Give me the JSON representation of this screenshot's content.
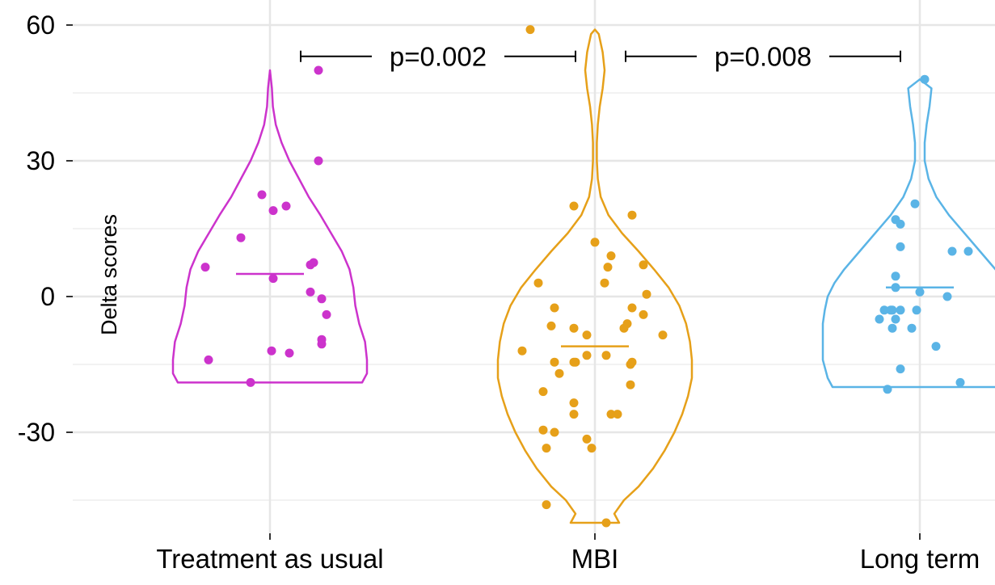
{
  "colors": {
    "grid_major": "#e6e6e6",
    "grid_minor": "#f2f2f2",
    "treatment": "#cc33cc",
    "mbi": "#e6a019",
    "longterm": "#5ab4e6",
    "tick": "#333333"
  },
  "chart_data": {
    "type": "violin",
    "title": "",
    "xlabel": "",
    "ylabel": "Delta scores",
    "ylim": [
      -52,
      62
    ],
    "yticks": [
      60,
      30,
      0,
      -30
    ],
    "ytick_labels": [
      "60",
      "30",
      "0",
      "-30"
    ],
    "grid": true,
    "categories": [
      "Treatment as usual",
      "MBI",
      "Long term"
    ],
    "groups": [
      {
        "category": "Treatment as usual",
        "color_key": "treatment",
        "median": 5,
        "range": [
          -19,
          50
        ],
        "violin_profile": [
          [
            -19,
            0.95
          ],
          [
            -17,
            1.0
          ],
          [
            -14,
            1.0
          ],
          [
            -10,
            0.98
          ],
          [
            -6,
            0.92
          ],
          [
            -2,
            0.88
          ],
          [
            2,
            0.86
          ],
          [
            6,
            0.82
          ],
          [
            10,
            0.74
          ],
          [
            14,
            0.63
          ],
          [
            18,
            0.52
          ],
          [
            22,
            0.4
          ],
          [
            26,
            0.3
          ],
          [
            30,
            0.2
          ],
          [
            34,
            0.12
          ],
          [
            38,
            0.06
          ],
          [
            42,
            0.03
          ],
          [
            46,
            0.02
          ],
          [
            50,
            0.0
          ]
        ],
        "points": [
          [
            0.3,
            50
          ],
          [
            0.3,
            30
          ],
          [
            -0.05,
            22.5
          ],
          [
            0.02,
            19
          ],
          [
            0.1,
            20
          ],
          [
            -0.18,
            13
          ],
          [
            -0.4,
            6.5
          ],
          [
            0.25,
            7
          ],
          [
            0.27,
            7.5
          ],
          [
            0.02,
            4
          ],
          [
            0.25,
            1
          ],
          [
            0.32,
            -0.5
          ],
          [
            0.35,
            -4
          ],
          [
            0.32,
            -9.5
          ],
          [
            0.32,
            -10.5
          ],
          [
            0.01,
            -12
          ],
          [
            0.12,
            -12.5
          ],
          [
            -0.38,
            -14
          ],
          [
            -0.12,
            -19
          ]
        ]
      },
      {
        "category": "MBI",
        "color_key": "mbi",
        "median": -11,
        "range": [
          -50,
          59
        ],
        "violin_profile": [
          [
            -50,
            0.25
          ],
          [
            -48,
            0.2
          ],
          [
            -45,
            0.3
          ],
          [
            -42,
            0.45
          ],
          [
            -38,
            0.6
          ],
          [
            -34,
            0.72
          ],
          [
            -30,
            0.82
          ],
          [
            -26,
            0.9
          ],
          [
            -22,
            0.96
          ],
          [
            -18,
            1.0
          ],
          [
            -14,
            1.0
          ],
          [
            -10,
            0.98
          ],
          [
            -6,
            0.94
          ],
          [
            -2,
            0.87
          ],
          [
            2,
            0.76
          ],
          [
            6,
            0.61
          ],
          [
            10,
            0.45
          ],
          [
            14,
            0.28
          ],
          [
            18,
            0.14
          ],
          [
            22,
            0.06
          ],
          [
            26,
            0.03
          ],
          [
            30,
            0.02
          ],
          [
            34,
            0.02
          ],
          [
            38,
            0.03
          ],
          [
            42,
            0.05
          ],
          [
            46,
            0.08
          ],
          [
            50,
            0.1
          ],
          [
            54,
            0.08
          ],
          [
            58,
            0.04
          ],
          [
            59,
            0.0
          ]
        ],
        "points": [
          [
            -0.4,
            59
          ],
          [
            -0.13,
            20
          ],
          [
            0.23,
            18
          ],
          [
            0.0,
            12
          ],
          [
            0.1,
            9
          ],
          [
            0.08,
            6.5
          ],
          [
            0.3,
            7
          ],
          [
            -0.35,
            3
          ],
          [
            0.06,
            3
          ],
          [
            0.32,
            0.5
          ],
          [
            -0.25,
            -2.5
          ],
          [
            0.23,
            -2.5
          ],
          [
            0.3,
            -4
          ],
          [
            0.2,
            -6
          ],
          [
            0.18,
            -7
          ],
          [
            -0.27,
            -6.5
          ],
          [
            -0.13,
            -7
          ],
          [
            -0.05,
            -8.5
          ],
          [
            0.42,
            -8.5
          ],
          [
            -0.45,
            -12
          ],
          [
            -0.25,
            -14.5
          ],
          [
            -0.05,
            -13
          ],
          [
            -0.12,
            -14.5
          ],
          [
            -0.13,
            -14.5
          ],
          [
            0.07,
            -13
          ],
          [
            0.22,
            -15
          ],
          [
            0.23,
            -14.5
          ],
          [
            -0.22,
            -17
          ],
          [
            0.22,
            -19.5
          ],
          [
            -0.32,
            -21
          ],
          [
            -0.13,
            -23.5
          ],
          [
            -0.13,
            -26
          ],
          [
            0.1,
            -26
          ],
          [
            0.14,
            -26
          ],
          [
            -0.32,
            -29.5
          ],
          [
            -0.25,
            -30
          ],
          [
            -0.3,
            -33.5
          ],
          [
            -0.05,
            -31.5
          ],
          [
            -0.02,
            -33.5
          ],
          [
            -0.3,
            -46
          ],
          [
            0.07,
            -50
          ]
        ]
      },
      {
        "category": "Long term",
        "color_key": "longterm",
        "median": 2,
        "range": [
          -20,
          48
        ],
        "violin_profile": [
          [
            -20,
            0.9
          ],
          [
            -18,
            0.95
          ],
          [
            -14,
            1.0
          ],
          [
            -10,
            1.0
          ],
          [
            -6,
            1.0
          ],
          [
            -3,
            0.98
          ],
          [
            0,
            0.95
          ],
          [
            3,
            0.88
          ],
          [
            6,
            0.78
          ],
          [
            10,
            0.62
          ],
          [
            14,
            0.46
          ],
          [
            18,
            0.3
          ],
          [
            22,
            0.17
          ],
          [
            26,
            0.09
          ],
          [
            30,
            0.05
          ],
          [
            34,
            0.05
          ],
          [
            38,
            0.07
          ],
          [
            42,
            0.1
          ],
          [
            46,
            0.12
          ],
          [
            48,
            0.0
          ]
        ],
        "points": [
          [
            0.03,
            48
          ],
          [
            -0.03,
            20.5
          ],
          [
            -0.15,
            17
          ],
          [
            -0.12,
            16
          ],
          [
            -0.12,
            11
          ],
          [
            0.2,
            10
          ],
          [
            0.3,
            10
          ],
          [
            -0.15,
            4.5
          ],
          [
            -0.15,
            2
          ],
          [
            0,
            1
          ],
          [
            0.17,
            0
          ],
          [
            -0.18,
            -3
          ],
          [
            -0.17,
            -3
          ],
          [
            -0.22,
            -3
          ],
          [
            -0.12,
            -3
          ],
          [
            -0.02,
            -3
          ],
          [
            -0.25,
            -5
          ],
          [
            -0.15,
            -5
          ],
          [
            -0.05,
            -7
          ],
          [
            -0.17,
            -7
          ],
          [
            0.1,
            -11
          ],
          [
            -0.12,
            -16
          ],
          [
            0.25,
            -19
          ],
          [
            -0.2,
            -20.5
          ]
        ]
      }
    ],
    "annotations": [
      {
        "label": "p=0.002",
        "from_category": 0,
        "to_category": 1,
        "y": 53
      },
      {
        "label": "p=0.008",
        "from_category": 1,
        "to_category": 2,
        "y": 53
      }
    ]
  }
}
